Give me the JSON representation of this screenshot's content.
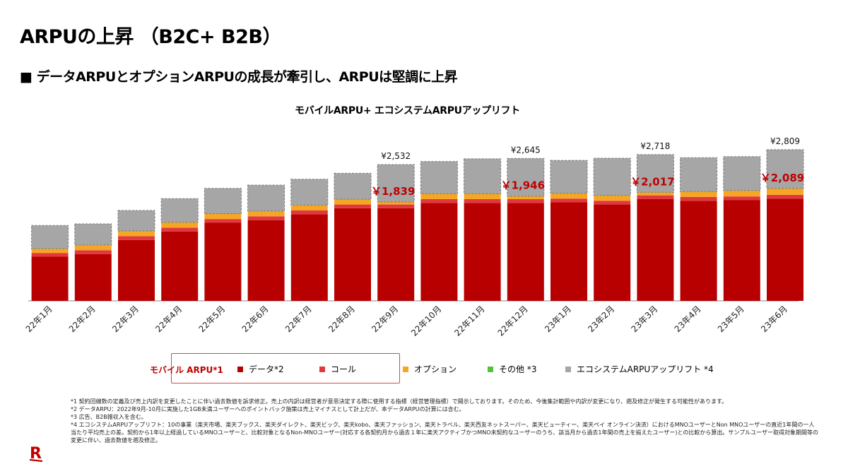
{
  "header": {
    "title": "ARPUの上昇 （B2C+ B2B）",
    "subtitle": "■ データARPUとオプションARPUの成長が牽引し、ARPUは堅調に上昇"
  },
  "chart_data": {
    "type": "bar",
    "stacked": true,
    "title": "モバイルARPU+ エコシステムARPUアップリフト",
    "categories": [
      "22年1月",
      "22年2月",
      "22年3月",
      "22年4月",
      "22年5月",
      "22年6月",
      "22年7月",
      "22年8月",
      "22年9月",
      "22年10月",
      "22年11月",
      "22年12月",
      "23年1月",
      "23年2月",
      "23年3月",
      "23年4月",
      "23年5月",
      "23年6月"
    ],
    "series": [
      {
        "name": "データ*2",
        "color": "#b80000",
        "values": [
          820,
          870,
          1130,
          1290,
          1450,
          1500,
          1610,
          1720,
          1720,
          1820,
          1820,
          1820,
          1830,
          1790,
          1890,
          1860,
          1870,
          1900
        ]
      },
      {
        "name": "コール",
        "color": "#e0383e",
        "values": [
          70,
          70,
          70,
          70,
          70,
          70,
          70,
          70,
          70,
          70,
          70,
          70,
          70,
          70,
          70,
          70,
          70,
          70
        ]
      },
      {
        "name": "オプション",
        "color": "#f5a623",
        "values": [
          80,
          100,
          100,
          100,
          100,
          100,
          100,
          100,
          49,
          100,
          100,
          56,
          100,
          100,
          57,
          100,
          110,
          119
        ]
      },
      {
        "name": "その他 *3",
        "color": "#52c23a",
        "values": [
          0,
          0,
          0,
          0,
          0,
          0,
          0,
          0,
          0,
          0,
          0,
          0,
          0,
          0,
          0,
          0,
          0,
          0
        ]
      },
      {
        "name": "エコシステムARPUアップリフト *4",
        "color": "#a6a6a6",
        "values": [
          430,
          390,
          380,
          440,
          470,
          480,
          480,
          480,
          693,
          600,
          650,
          699,
          610,
          690,
          701,
          630,
          630,
          720
        ]
      }
    ],
    "mobile_arpu_labels": [
      {
        "category": "22年9月",
        "label": "￥1,839"
      },
      {
        "category": "22年12月",
        "label": "￥1,946"
      },
      {
        "category": "23年3月",
        "label": "￥2,017"
      },
      {
        "category": "23年6月",
        "label": "￥2,089"
      }
    ],
    "total_labels": [
      {
        "category": "22年9月",
        "label": "¥2,532"
      },
      {
        "category": "22年12月",
        "label": "¥2,645"
      },
      {
        "category": "23年3月",
        "label": "¥2,718"
      },
      {
        "category": "23年6月",
        "label": "¥2,809"
      }
    ],
    "ylim": [
      0,
      2900
    ],
    "grid": false
  },
  "legend": {
    "group_label": "モバイル ARPU*1",
    "items": [
      {
        "label": "データ*2",
        "color": "#b80000"
      },
      {
        "label": "コール",
        "color": "#e0383e"
      },
      {
        "label": "オプション",
        "color": "#f5a623"
      },
      {
        "label": "その他 *3",
        "color": "#52c23a"
      },
      {
        "label": "エコシステムARPUアップリフト *4",
        "color": "#a6a6a6"
      }
    ]
  },
  "footnotes": [
    "*1 契約回線数の定義及び売上内訳を変更したことに伴い過去数値を訴求修正。売上の内訳は経営者が意思決定する際に使用する指標（経営管理指標）で開示しております。そのため、今後集計範囲や内訳が変更になり、遡及修正が発生する可能性があります。",
    "*2 データARPU：2022年9月-10月に実施した1GB未満ユーザーへのポイントバック施策は売上マイナスとして計上だが、本データARPUの計算には含む。",
    "*3 広告、B2B雑収入を含む。",
    "*4 エコシステムARPUアップリフト：10の事業（楽天市場、楽天ブックス、楽天ダイレクト、楽天ビック、楽天kobo、楽天ファッション、楽天トラベル、楽天西友ネットスーパー、楽天ビューティー、楽天ペイ オンライン決済）におけるMNOユーザーとNon MNOユーザーの直近1年間の一人当たり平均売上の差。契約から1年以上経過しているMNOユーザーと、比較対象となるNon-MNOユーザー(対応する各契約月から過去１年に楽天アクティブかつMNO未契約なユーザーのうち、該当月から過去1年間の売上を揃えたユーザー)との比較から算出。サンプルユーザー取得対象期間等の変更に伴い、過去数値を遡及修正。"
  ],
  "logo": {
    "text": "R",
    "color": "#bf0000"
  }
}
